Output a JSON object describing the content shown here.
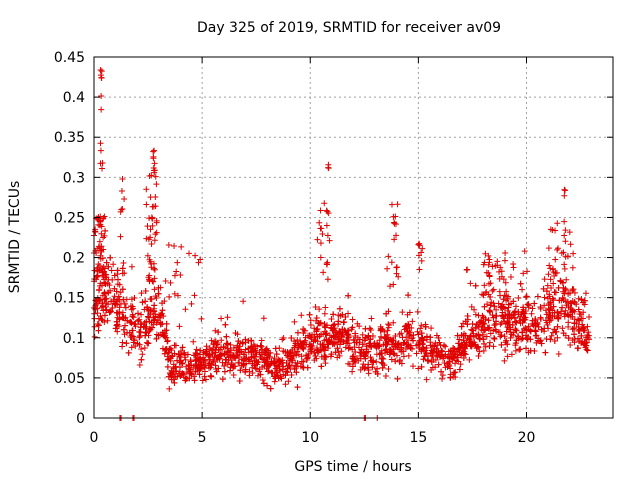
{
  "chart_data": {
    "type": "scatter",
    "title": "Day 325 of 2019, SRMTID for receiver av09",
    "xlabel": "GPS time / hours",
    "ylabel": "SRMTID / TECUs",
    "xlim": [
      0,
      24
    ],
    "ylim": [
      0,
      0.45
    ],
    "x_ticks": [
      0,
      5,
      10,
      15,
      20
    ],
    "x_tick_labels": [
      "0",
      "5",
      "10",
      "15",
      "20"
    ],
    "y_ticks": [
      0,
      0.05,
      0.1,
      0.15,
      0.2,
      0.25,
      0.3,
      0.35,
      0.4,
      0.45
    ],
    "y_tick_labels": [
      "0",
      "0.05",
      "0.1",
      "0.15",
      "0.2",
      "0.25",
      "0.3",
      "0.35",
      "0.4",
      "0.45"
    ],
    "grid": true,
    "marker": "plus",
    "series_color": "#e00000",
    "profile": [
      {
        "t": 0.0,
        "y": 0.15
      },
      {
        "t": 0.5,
        "y": 0.165
      },
      {
        "t": 1.0,
        "y": 0.14
      },
      {
        "t": 1.5,
        "y": 0.12
      },
      {
        "t": 2.0,
        "y": 0.1
      },
      {
        "t": 2.5,
        "y": 0.12
      },
      {
        "t": 3.0,
        "y": 0.14
      },
      {
        "t": 3.5,
        "y": 0.07
      },
      {
        "t": 4.5,
        "y": 0.065
      },
      {
        "t": 6.0,
        "y": 0.08
      },
      {
        "t": 7.5,
        "y": 0.075
      },
      {
        "t": 8.5,
        "y": 0.065
      },
      {
        "t": 9.5,
        "y": 0.08
      },
      {
        "t": 10.5,
        "y": 0.1
      },
      {
        "t": 11.5,
        "y": 0.1
      },
      {
        "t": 12.5,
        "y": 0.08
      },
      {
        "t": 13.5,
        "y": 0.09
      },
      {
        "t": 14.5,
        "y": 0.1
      },
      {
        "t": 15.5,
        "y": 0.085
      },
      {
        "t": 16.5,
        "y": 0.065
      },
      {
        "t": 17.5,
        "y": 0.11
      },
      {
        "t": 18.5,
        "y": 0.12
      },
      {
        "t": 19.5,
        "y": 0.115
      },
      {
        "t": 20.5,
        "y": 0.12
      },
      {
        "t": 21.5,
        "y": 0.14
      },
      {
        "t": 22.5,
        "y": 0.12
      },
      {
        "t": 22.8,
        "y": 0.1
      }
    ],
    "bursts": [
      {
        "t": 0.0,
        "t_end": 0.5,
        "n": 60,
        "ymin": 0.12,
        "ymax": 0.26
      },
      {
        "t": 0.3,
        "t_end": 0.4,
        "n": 12,
        "ymin": 0.29,
        "ymax": 0.44
      },
      {
        "t": 1.2,
        "t_end": 1.4,
        "n": 10,
        "ymin": 0.18,
        "ymax": 0.3
      },
      {
        "t": 2.4,
        "t_end": 2.9,
        "n": 40,
        "ymin": 0.17,
        "ymax": 0.31
      },
      {
        "t": 2.7,
        "t_end": 2.85,
        "n": 8,
        "ymin": 0.3,
        "ymax": 0.335
      },
      {
        "t": 10.3,
        "t_end": 10.9,
        "n": 20,
        "ymin": 0.17,
        "ymax": 0.27
      },
      {
        "t": 10.8,
        "t_end": 10.9,
        "n": 3,
        "ymin": 0.31,
        "ymax": 0.32
      },
      {
        "t": 13.5,
        "t_end": 14.1,
        "n": 18,
        "ymin": 0.16,
        "ymax": 0.27
      },
      {
        "t": 15.0,
        "t_end": 15.2,
        "n": 8,
        "ymin": 0.16,
        "ymax": 0.22
      },
      {
        "t": 17.9,
        "t_end": 19.5,
        "n": 35,
        "ymin": 0.15,
        "ymax": 0.21
      },
      {
        "t": 21.0,
        "t_end": 22.2,
        "n": 35,
        "ymin": 0.16,
        "ymax": 0.25
      },
      {
        "t": 21.7,
        "t_end": 21.8,
        "n": 3,
        "ymin": 0.26,
        "ymax": 0.29
      },
      {
        "t": 3.3,
        "t_end": 5.0,
        "n": 20,
        "ymin": 0.12,
        "ymax": 0.22
      }
    ],
    "zero_points": [
      1.2,
      1.25,
      1.8,
      1.85,
      12.5,
      12.55,
      13.1
    ],
    "total_points": 2600
  }
}
